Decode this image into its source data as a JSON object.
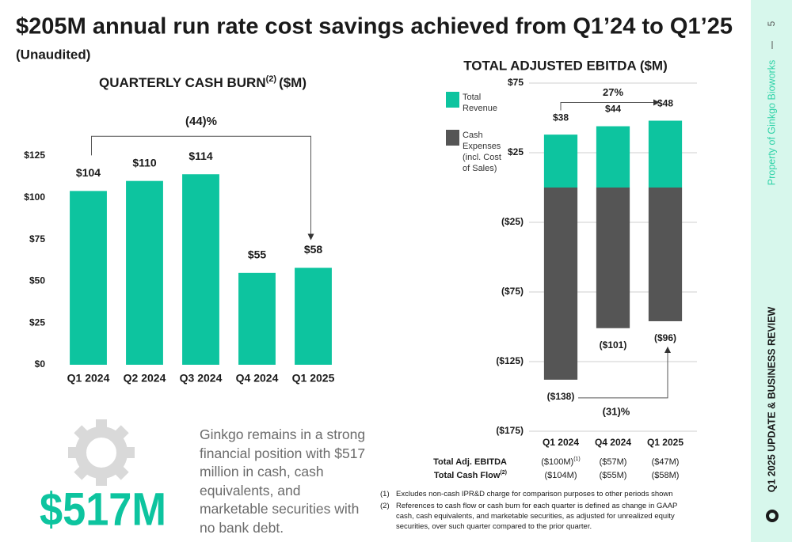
{
  "title": "$205M annual run rate cost savings achieved from Q1’24 to Q1’25",
  "subtitle": "(Unaudited)",
  "chart_data": [
    {
      "type": "bar",
      "title": "QUARTERLY CASH BURN",
      "title_note": "(2)",
      "title_unit": "($M)",
      "categories": [
        "Q1 2024",
        "Q2 2024",
        "Q3 2024",
        "Q4 2024",
        "Q1 2025"
      ],
      "values": [
        104,
        110,
        114,
        55,
        58
      ],
      "value_labels": [
        "$104",
        "$110",
        "$114",
        "$55",
        "$58"
      ],
      "color": "#0dc49f",
      "ylim": [
        0,
        125
      ],
      "yticks": [
        {
          "value": 0,
          "label": "$0"
        },
        {
          "value": 25,
          "label": "$25"
        },
        {
          "value": 50,
          "label": "$50"
        },
        {
          "value": 75,
          "label": "$75"
        },
        {
          "value": 100,
          "label": "$100"
        },
        {
          "value": 125,
          "label": "$125"
        }
      ],
      "grid": false,
      "annotation": "(44)%"
    },
    {
      "type": "stacked_bar",
      "title": "TOTAL ADJUSTED EBITDA ($M)",
      "categories": [
        "Q1 2024",
        "Q4 2024",
        "Q1 2025"
      ],
      "series": [
        {
          "name": "Total Revenue",
          "color": "#0dc49f",
          "values": [
            38,
            44,
            48
          ],
          "value_labels": [
            "$38",
            "$44",
            "$48"
          ]
        },
        {
          "name": "Cash Expenses (incl. Cost of Sales)",
          "color": "#555555",
          "values": [
            -138,
            -101,
            -96
          ],
          "value_labels": [
            "($138)",
            "($101)",
            "($96)"
          ]
        }
      ],
      "ylim": [
        -175,
        75
      ],
      "yticks": [
        {
          "value": -175,
          "label": "($175)"
        },
        {
          "value": -125,
          "label": "($125)"
        },
        {
          "value": -75,
          "label": "($75)"
        },
        {
          "value": -25,
          "label": "($25)"
        },
        {
          "value": 25,
          "label": "$25"
        },
        {
          "value": 75,
          "label": "$75"
        }
      ],
      "grid": true,
      "legend": "left",
      "annotations": [
        "27%",
        "(31)%"
      ]
    }
  ],
  "table": {
    "rows": [
      {
        "label": "Total Adj. EBITDA",
        "note": "",
        "cells": [
          "($100M)",
          "($57M)",
          "($47M)"
        ],
        "cell_note": "(1)"
      },
      {
        "label": "Total Cash Flow",
        "note": "(2)",
        "cells": [
          "($104M)",
          "($55M)",
          "($58M)"
        ]
      }
    ]
  },
  "callout": {
    "figure": "$517M",
    "text": "Ginkgo remains in a strong financial position with $517 million in cash, cash equivalents, and marketable securities with no bank debt."
  },
  "footnotes": [
    {
      "marker": "(1)",
      "text": "Excludes non-cash IPR&D charge for comparison purposes to other periods shown"
    },
    {
      "marker": "(2)",
      "text": "References to cash flow or cash burn for each quarter is defined as change in GAAP cash, cash equivalents, and marketable securities, as adjusted for unrealized equity securities, over such quarter compared to the prior quarter."
    }
  ],
  "sidebar": {
    "page": "5",
    "property": "Property of Ginkgo Bioworks",
    "section": "Q1 2025 UPDATE & BUSINESS REVIEW"
  }
}
